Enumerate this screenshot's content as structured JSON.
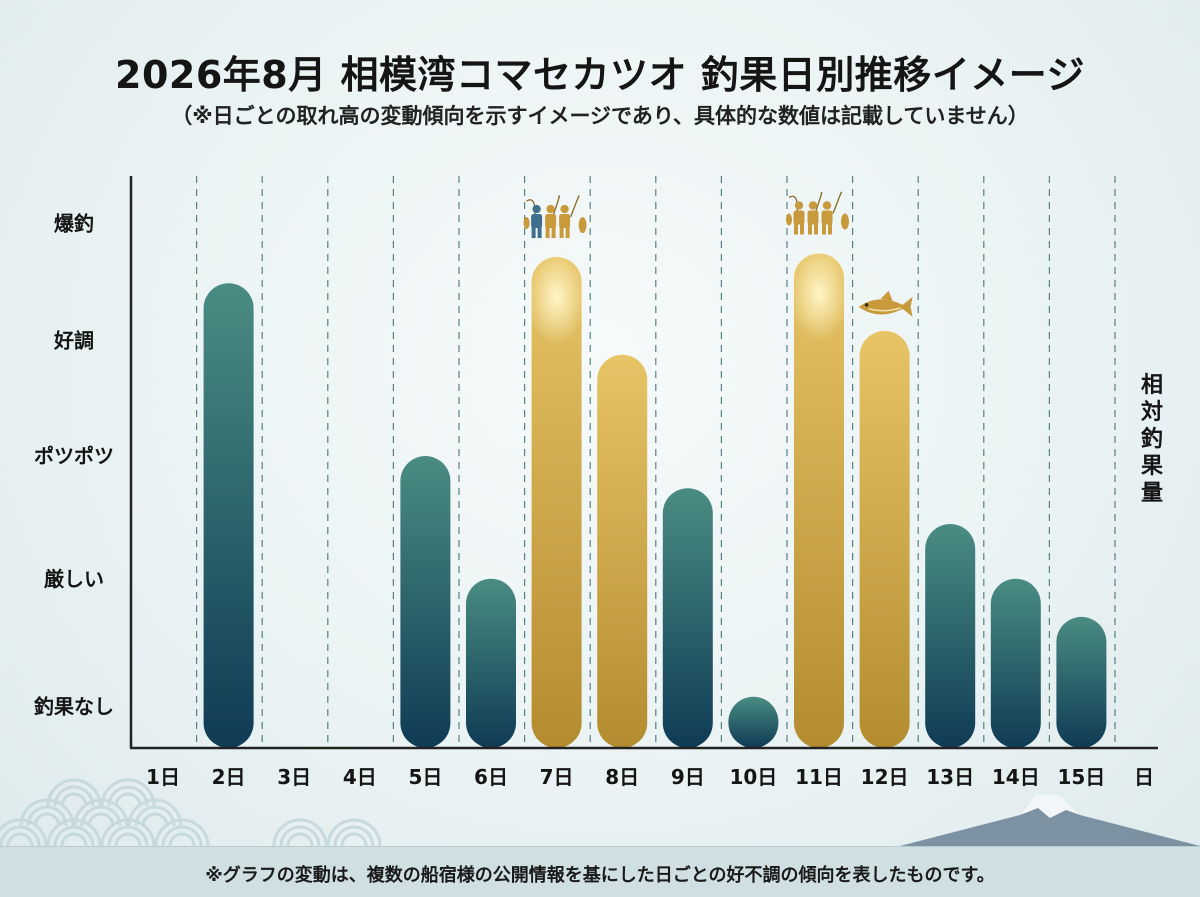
{
  "header": {
    "title": "2026年8月 相模湾コマセカツオ 釣果日別推移イメージ",
    "subtitle": "（※日ごとの取れ高の変動傾向を示すイメージであり、具体的な数値は記載していません）"
  },
  "footer": {
    "note": "※グラフの変動は、複数の船宿様の公開情報を基にした日ごとの好不調の傾向を表したものです。"
  },
  "chart_data": {
    "type": "bar",
    "title": "2026年8月 相模湾コマセカツオ 釣果日別推移イメージ",
    "xlabel": "日",
    "ylabel": "相対釣果量",
    "categories": [
      "1日",
      "2日",
      "3日",
      "4日",
      "5日",
      "6日",
      "7日",
      "8日",
      "9日",
      "10日",
      "11日",
      "12日",
      "13日",
      "14日",
      "15日"
    ],
    "values": [
      0,
      3.9,
      0,
      0,
      2.45,
      1.42,
      4.12,
      3.3,
      2.18,
      0.43,
      4.15,
      3.5,
      1.88,
      1.42,
      1.1
    ],
    "highlight": [
      false,
      false,
      false,
      false,
      false,
      false,
      true,
      true,
      false,
      false,
      true,
      true,
      false,
      false,
      false
    ],
    "ylim": [
      0,
      4.8
    ],
    "yticks": [
      {
        "value": 0.35,
        "label": "釣果なし"
      },
      {
        "value": 1.42,
        "label": "厳しい"
      },
      {
        "value": 2.45,
        "label": "ポツポツ"
      },
      {
        "value": 3.42,
        "label": "好調"
      },
      {
        "value": 4.4,
        "label": "爆釣"
      }
    ],
    "icons": [
      {
        "category_index": 6,
        "icon": "anglers-icon"
      },
      {
        "category_index": 10,
        "icon": "anglers-icon"
      },
      {
        "category_index": 11,
        "icon": "bonito-fish-icon"
      }
    ],
    "colors": {
      "normal_top": "#4a8c82",
      "normal_bottom": "#0f3b55",
      "highlight_top": "#e7c466",
      "highlight_bottom": "#b48c30",
      "glow": "#fff6c8",
      "axis": "#222222",
      "gridline": "#3f6c70"
    },
    "grid": "vertical-dashed",
    "legend": "none"
  }
}
